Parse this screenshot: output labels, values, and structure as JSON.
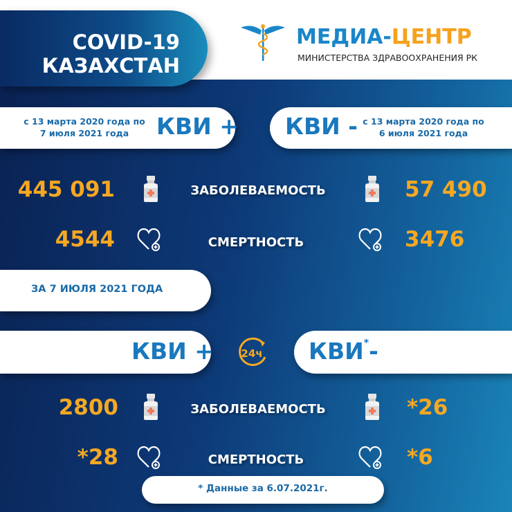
{
  "header": {
    "title_line1": "COVID-19",
    "title_line2": "КАЗАХСТАН",
    "logo_main_blue": "МЕДИА-",
    "logo_main_orange": "ЦЕНТР",
    "logo_sub": "МИНИСТЕРСТВА ЗДРАВООХРАНЕНИЯ РК"
  },
  "cumulative": {
    "positive": {
      "label": "КВИ +",
      "period_line1": "с 13 марта 2020 года по",
      "period_line2": "7 июля 2021 года",
      "cases": "445 091",
      "deaths": "4544"
    },
    "negative": {
      "label": "КВИ -",
      "period_line1": "с 13 марта 2020 года по",
      "period_line2": "6 июля 2021 года",
      "cases": "57 490",
      "deaths": "3476"
    }
  },
  "labels": {
    "cases": "ЗАБОЛЕВАЕМОСТЬ",
    "deaths": "СМЕРТНОСТЬ"
  },
  "daily": {
    "date_label": "ЗА 7 ИЮЛЯ 2021 ГОДА",
    "icon_24h": "24ч",
    "positive": {
      "label": "КВИ +",
      "cases": "2800",
      "deaths": "*28"
    },
    "negative": {
      "label": "КВИ",
      "asterisk": "*",
      "suffix": "-",
      "cases": "*26",
      "deaths": "*6"
    }
  },
  "footnote": "* Данные за 6.07.2021г.",
  "colors": {
    "accent_blue": "#1a78bd",
    "number_orange": "#f6a823",
    "background_navy": "#0a2253"
  }
}
